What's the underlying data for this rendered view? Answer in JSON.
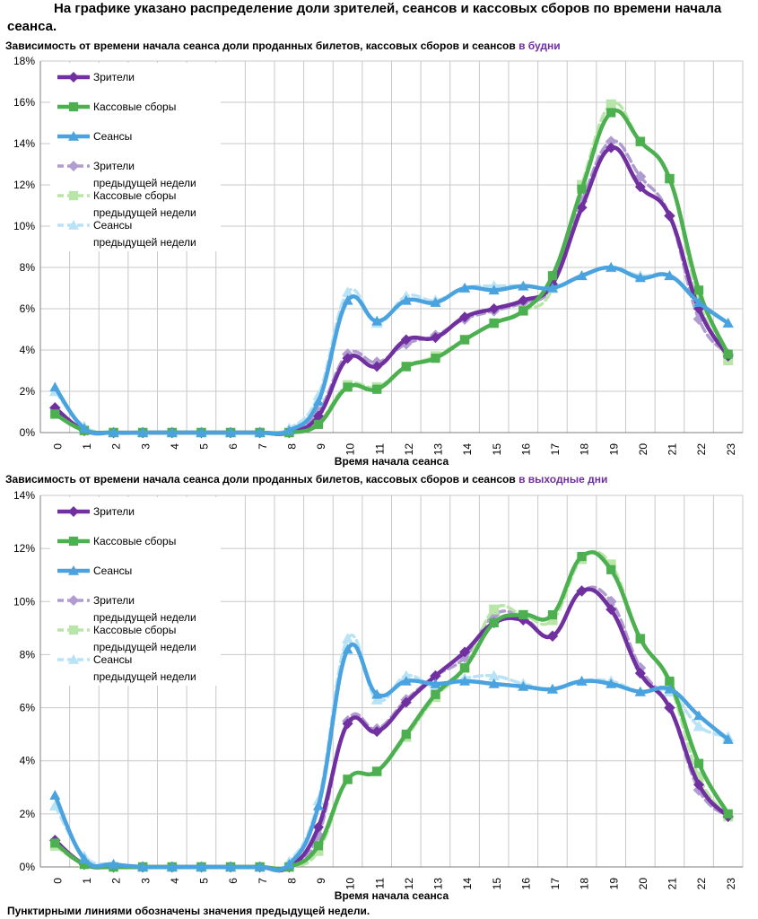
{
  "page": {
    "title": "На графике указано распределение доли зрителей, сеансов и кассовых сборов по времени начала сеанса.",
    "footnote": "Пунктирными линиями обозначены значения предыдущей недели."
  },
  "colors": {
    "viewers": "#7030a0",
    "box_office": "#4caf50",
    "sessions": "#4aa3df",
    "viewers_prev": "#b09cd0",
    "box_office_prev": "#b8e6a8",
    "sessions_prev": "#b8e2f5",
    "grid": "#c8c8c8",
    "highlight": "#7030a0"
  },
  "chart_data": [
    {
      "type": "line",
      "title_prefix": "Зависимость от времени начала сеанса доли проданных билетов, кассовых сборов и сеансов ",
      "title_highlight": "в будни",
      "xlabel": "Время начала сеанса",
      "ylabel": "",
      "ylim": [
        0,
        18
      ],
      "ytick_step": 2,
      "yticks": [
        "0%",
        "2%",
        "4%",
        "6%",
        "8%",
        "10%",
        "12%",
        "14%",
        "16%",
        "18%"
      ],
      "x": [
        0,
        1,
        2,
        3,
        4,
        5,
        6,
        7,
        8,
        9,
        10,
        11,
        12,
        13,
        14,
        15,
        16,
        17,
        18,
        19,
        20,
        21,
        22,
        23
      ],
      "xtick_labels": [
        "0",
        "1",
        "2",
        "3",
        "4",
        "5",
        "6",
        "7",
        "8",
        "9",
        "10",
        "11",
        "12",
        "13",
        "14",
        "15",
        "16",
        "17",
        "18",
        "19",
        "20",
        "21",
        "22",
        "23"
      ],
      "grid": true,
      "legend_position": "top-left",
      "legend": [
        {
          "key": "viewers",
          "line1": "Зрители",
          "line2": ""
        },
        {
          "key": "box_office",
          "line1": "Кассовые сборы",
          "line2": ""
        },
        {
          "key": "sessions",
          "line1": "Сеансы",
          "line2": ""
        },
        {
          "key": "viewers_prev",
          "line1": "Зрители",
          "line2": "предыдущей недели"
        },
        {
          "key": "box_office_prev",
          "line1": "Кассовые сборы",
          "line2": "предыдущей недели"
        },
        {
          "key": "sessions_prev",
          "line1": "Сеансы",
          "line2": "предыдущей недели"
        }
      ],
      "series": [
        {
          "key": "viewers_prev",
          "name": "Зрители предыдущей недели",
          "marker": "diamond",
          "dashed": true,
          "values": [
            1.2,
            0.1,
            0,
            0,
            0,
            0,
            0,
            0,
            0,
            1.0,
            3.8,
            3.4,
            4.3,
            4.7,
            5.5,
            5.9,
            6.3,
            7.1,
            11.2,
            14.1,
            12.4,
            10.5,
            5.5,
            3.8
          ]
        },
        {
          "key": "box_office_prev",
          "name": "Кассовые сборы предыдущей недели",
          "marker": "square",
          "dashed": true,
          "values": [
            0.9,
            0.1,
            0,
            0,
            0,
            0,
            0,
            0,
            0,
            0.5,
            2.3,
            2.2,
            3.2,
            3.7,
            4.5,
            5.3,
            5.9,
            7.0,
            12.0,
            15.9,
            14.1,
            12.3,
            6.4,
            3.5
          ]
        },
        {
          "key": "sessions_prev",
          "name": "Сеансы предыдущей недели",
          "marker": "triangle",
          "dashed": true,
          "values": [
            2.0,
            0.3,
            0,
            0,
            0,
            0,
            0,
            0,
            0.2,
            1.8,
            6.8,
            5.3,
            6.6,
            6.4,
            7.0,
            7.1,
            7.1,
            7.0,
            7.6,
            8.0,
            7.6,
            7.6,
            6.3,
            5.3
          ]
        },
        {
          "key": "viewers",
          "name": "Зрители",
          "marker": "diamond",
          "dashed": false,
          "values": [
            1.2,
            0.1,
            0,
            0,
            0,
            0,
            0,
            0,
            0,
            0.8,
            3.6,
            3.2,
            4.5,
            4.6,
            5.6,
            6.0,
            6.4,
            7.2,
            10.9,
            13.8,
            11.9,
            10.5,
            6.0,
            3.7
          ]
        },
        {
          "key": "box_office",
          "name": "Кассовые сборы",
          "marker": "square",
          "dashed": false,
          "values": [
            0.9,
            0.1,
            0,
            0,
            0,
            0,
            0,
            0,
            0,
            0.4,
            2.2,
            2.1,
            3.2,
            3.6,
            4.5,
            5.3,
            5.9,
            7.6,
            11.8,
            15.5,
            14.1,
            12.3,
            6.9,
            3.8
          ]
        },
        {
          "key": "sessions",
          "name": "Сеансы",
          "marker": "triangle",
          "dashed": false,
          "values": [
            2.2,
            0.2,
            0,
            0,
            0,
            0,
            0,
            0,
            0.1,
            1.5,
            6.4,
            5.4,
            6.4,
            6.3,
            7.0,
            6.9,
            7.1,
            7.0,
            7.6,
            8.0,
            7.5,
            7.6,
            6.3,
            5.3
          ]
        }
      ]
    },
    {
      "type": "line",
      "title_prefix": "Зависимость от времени начала сеанса доли проданных билетов, кассовых сборов и сеансов ",
      "title_highlight": "в выходные дни",
      "xlabel": "Время начала сеанса",
      "ylabel": "",
      "ylim": [
        0,
        14
      ],
      "ytick_step": 2,
      "yticks": [
        "0%",
        "2%",
        "4%",
        "6%",
        "8%",
        "10%",
        "12%",
        "14%"
      ],
      "x": [
        0,
        1,
        2,
        3,
        4,
        5,
        6,
        7,
        8,
        9,
        10,
        11,
        12,
        13,
        14,
        15,
        16,
        17,
        18,
        19,
        20,
        21,
        22,
        23
      ],
      "xtick_labels": [
        "0",
        "1",
        "2",
        "3",
        "4",
        "5",
        "6",
        "7",
        "8",
        "9",
        "10",
        "11",
        "12",
        "13",
        "14",
        "15",
        "16",
        "17",
        "18",
        "19",
        "20",
        "21",
        "22",
        "23"
      ],
      "grid": true,
      "legend_position": "top-left",
      "legend": [
        {
          "key": "viewers",
          "line1": "Зрители",
          "line2": ""
        },
        {
          "key": "box_office",
          "line1": "Кассовые сборы",
          "line2": ""
        },
        {
          "key": "sessions",
          "line1": "Сеансы",
          "line2": ""
        },
        {
          "key": "viewers_prev",
          "line1": "Зрители",
          "line2": "предыдущей недели"
        },
        {
          "key": "box_office_prev",
          "line1": "Кассовые сборы",
          "line2": "предыдущей недели"
        },
        {
          "key": "sessions_prev",
          "line1": "Сеансы",
          "line2": "предыдущей недели"
        }
      ],
      "series": [
        {
          "key": "viewers_prev",
          "name": "Зрители предыдущей недели",
          "marker": "diamond",
          "dashed": true,
          "values": [
            1.0,
            0.1,
            0,
            0,
            0,
            0,
            0,
            0,
            0,
            1.2,
            5.5,
            5.2,
            6.3,
            7.2,
            7.9,
            9.5,
            9.4,
            8.7,
            10.4,
            10.0,
            7.5,
            6.0,
            2.9,
            1.9
          ]
        },
        {
          "key": "box_office_prev",
          "name": "Кассовые сборы предыдущей недели",
          "marker": "square",
          "dashed": true,
          "values": [
            0.8,
            0.1,
            0,
            0,
            0,
            0,
            0,
            0,
            0,
            0.6,
            3.3,
            3.6,
            4.9,
            6.4,
            7.5,
            9.7,
            9.5,
            9.3,
            11.6,
            11.4,
            8.6,
            6.9,
            3.4,
            1.9
          ]
        },
        {
          "key": "sessions_prev",
          "name": "Сеансы предыдущей недели",
          "marker": "triangle",
          "dashed": true,
          "values": [
            2.3,
            0.4,
            0.1,
            0,
            0,
            0,
            0,
            0,
            0.2,
            2.5,
            8.6,
            6.3,
            7.2,
            6.8,
            7.1,
            7.2,
            6.9,
            6.7,
            7.0,
            7.0,
            6.6,
            6.6,
            5.3,
            4.9
          ]
        },
        {
          "key": "viewers",
          "name": "Зрители",
          "marker": "diamond",
          "dashed": false,
          "values": [
            1.0,
            0.1,
            0,
            0,
            0,
            0,
            0,
            0,
            0,
            1.5,
            5.4,
            5.1,
            6.2,
            7.2,
            8.1,
            9.2,
            9.3,
            8.7,
            10.4,
            9.7,
            7.3,
            6.0,
            3.1,
            1.9
          ]
        },
        {
          "key": "box_office",
          "name": "Кассовые сборы",
          "marker": "square",
          "dashed": false,
          "values": [
            0.9,
            0.1,
            0,
            0,
            0,
            0,
            0,
            0,
            0,
            0.8,
            3.3,
            3.6,
            5.0,
            6.5,
            7.5,
            9.2,
            9.5,
            9.5,
            11.7,
            11.2,
            8.6,
            7.0,
            3.9,
            2.0
          ]
        },
        {
          "key": "sessions",
          "name": "Сеансы",
          "marker": "triangle",
          "dashed": false,
          "values": [
            2.7,
            0.3,
            0.1,
            0,
            0,
            0,
            0,
            0,
            0.1,
            2.3,
            8.2,
            6.5,
            7.0,
            6.9,
            7.0,
            6.9,
            6.8,
            6.7,
            7.0,
            6.9,
            6.6,
            6.7,
            5.7,
            4.8
          ]
        }
      ]
    }
  ]
}
